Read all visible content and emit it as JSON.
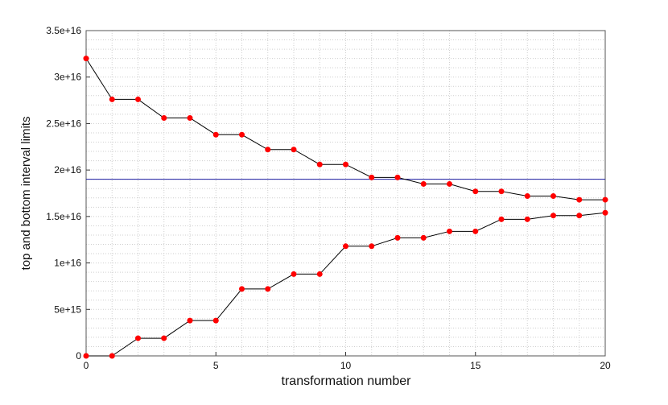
{
  "chart_data": {
    "type": "line",
    "xlabel": "transformation number",
    "ylabel": "top and bottom interval limits",
    "x": [
      0,
      1,
      2,
      3,
      4,
      5,
      6,
      7,
      8,
      9,
      10,
      11,
      12,
      13,
      14,
      15,
      16,
      17,
      18,
      19,
      20
    ],
    "series": [
      {
        "color": "#000000",
        "marker_color": "#ff0000",
        "values": [
          3.2e+16,
          2.76e+16,
          2.76e+16,
          2.56e+16,
          2.56e+16,
          2.38e+16,
          2.38e+16,
          2.22e+16,
          2.22e+16,
          2.06e+16,
          2.06e+16,
          1.92e+16,
          1.92e+16,
          1.85e+16,
          1.85e+16,
          1.77e+16,
          1.77e+16,
          1.72e+16,
          1.72e+16,
          1.68e+16,
          1.68e+16
        ]
      },
      {
        "color": "#000000",
        "marker_color": "#ff0000",
        "values": [
          0,
          0,
          1900000000000000.0,
          1900000000000000.0,
          3800000000000000.0,
          3800000000000000.0,
          7200000000000000.0,
          7200000000000000.0,
          8800000000000000.0,
          8800000000000000.0,
          1.18e+16,
          1.18e+16,
          1.27e+16,
          1.27e+16,
          1.34e+16,
          1.34e+16,
          1.47e+16,
          1.47e+16,
          1.51e+16,
          1.51e+16,
          1.54e+16
        ]
      }
    ],
    "hlines": [
      {
        "value": 1.9e+16,
        "color": "#1a1aa0"
      }
    ],
    "xlim": [
      0,
      20
    ],
    "xticks": [
      0,
      5,
      10,
      15,
      20
    ],
    "ylim": [
      0,
      3.5e+16
    ],
    "yticks": [
      0,
      {
        "value": 5000000000000000.0,
        "label": "5e+15"
      },
      {
        "value": 1e+16,
        "label": "1e+16"
      },
      {
        "value": 1.5e+16,
        "label": "1.5e+16"
      },
      {
        "value": 2e+16,
        "label": "2e+16"
      },
      {
        "value": 2.5e+16,
        "label": "2.5e+16"
      },
      {
        "value": 3e+16,
        "label": "3e+16"
      },
      {
        "value": 3.5e+16,
        "label": "3.5e+16"
      }
    ],
    "grid": true,
    "minor_grid": true
  }
}
